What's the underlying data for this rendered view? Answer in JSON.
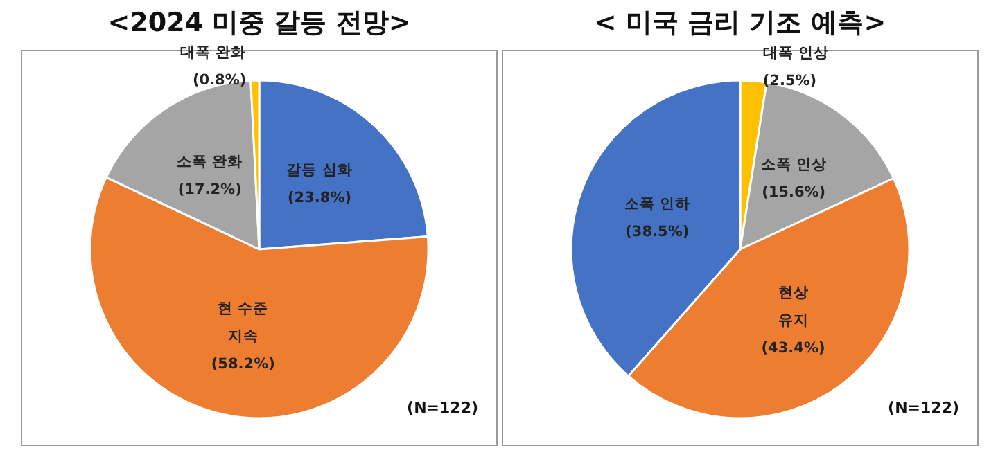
{
  "chart_data": [
    {
      "type": "pie",
      "title": "<2024 미중 갈등 전망>",
      "categories": [
        "갈등 심화",
        "현 수준\n지속",
        "소폭 완화",
        "대폭 완화"
      ],
      "values": [
        23.8,
        58.2,
        17.2,
        0.8
      ],
      "colors": [
        "#4472c4",
        "#ed7d31",
        "#a5a5a5",
        "#ffc000"
      ],
      "value_labels": [
        "(23.8%)",
        "(58.2%)",
        "(17.2%)",
        "(0.8%)"
      ],
      "annotations": [
        "(N=122)"
      ]
    },
    {
      "type": "pie",
      "title": "< 미국 금리 기조 예측>",
      "categories": [
        "대폭 인상",
        "소폭 인상",
        "현상\n유지",
        "소폭 인하"
      ],
      "values": [
        2.5,
        15.6,
        43.4,
        38.5
      ],
      "colors": [
        "#ffc000",
        "#a5a5a5",
        "#ed7d31",
        "#4472c4"
      ],
      "value_labels": [
        "(2.5%)",
        "(15.6%)",
        "(43.4%)",
        "(38.5%)"
      ],
      "annotations": [
        "(N=122)"
      ]
    }
  ]
}
